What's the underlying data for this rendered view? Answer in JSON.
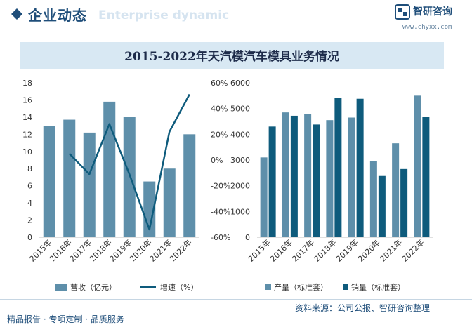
{
  "header": {
    "title": "企业动态",
    "subtitle": "Enterprise dynamic",
    "logo_text": "智研咨询",
    "logo_url": "www.chyxx.com"
  },
  "footer": {
    "left": "精品报告 · 专项定制 · 品质服务",
    "right": "资料来源：公司公报、智研咨询整理"
  },
  "colors": {
    "bar_light": "#5e8faa",
    "bar_dark": "#0e5b7c",
    "line": "#0e5b7c",
    "title_bg": "#d8e8f3"
  },
  "chart_data": [
    {
      "type": "bar",
      "title": "2015-2022年天汽模汽车模具业务情况",
      "categories": [
        "2015年",
        "2016年",
        "2017年",
        "2018年",
        "2019年",
        "2020年",
        "2021年",
        "2022年"
      ],
      "series": [
        {
          "name": "营收（亿元）",
          "type": "bar",
          "axis": "left",
          "values": [
            13.0,
            13.7,
            12.2,
            15.8,
            14.0,
            6.5,
            8.0,
            12.0
          ]
        },
        {
          "name": "增速（%）",
          "type": "line",
          "axis": "right",
          "values": [
            null,
            5,
            -11,
            28,
            -11,
            -54,
            22,
            51
          ]
        }
      ],
      "y_left": {
        "ylim": [
          0,
          18
        ],
        "ticks": [
          "0",
          "2",
          "4",
          "6",
          "8",
          "10",
          "12",
          "14",
          "16",
          "18"
        ]
      },
      "y_right": {
        "ylim": [
          -60,
          60
        ],
        "ticks": [
          "-60%",
          "-40%",
          "-20%",
          "0%",
          "20%",
          "40%",
          "60%"
        ]
      },
      "legend_position": "bottom"
    },
    {
      "type": "bar",
      "categories": [
        "2015年",
        "2016年",
        "2017年",
        "2018年",
        "2019年",
        "2020年",
        "2021年",
        "2022年"
      ],
      "series": [
        {
          "name": "产量（标准套）",
          "values": [
            3100,
            4850,
            4780,
            4550,
            4650,
            2950,
            3650,
            5500
          ]
        },
        {
          "name": "销量（标准套）",
          "values": [
            4300,
            4720,
            4380,
            5420,
            5380,
            2380,
            2650,
            4680
          ]
        }
      ],
      "ylim": [
        0,
        6000
      ],
      "ticks": [
        "0",
        "1000",
        "2000",
        "3000",
        "4000",
        "5000",
        "6000"
      ],
      "legend_position": "bottom"
    }
  ]
}
